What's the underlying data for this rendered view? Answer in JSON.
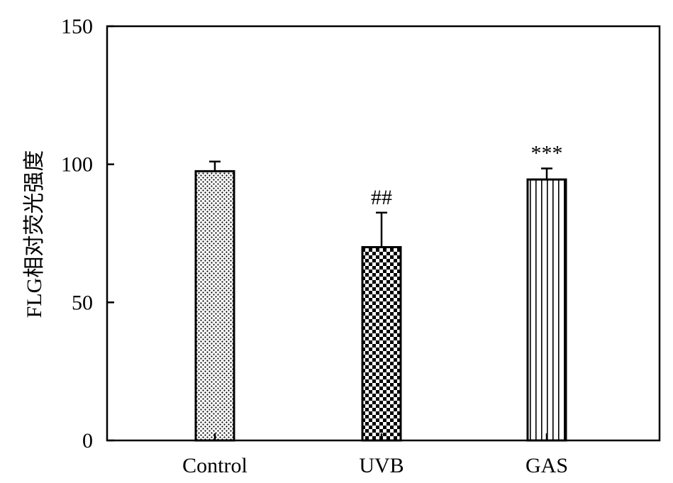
{
  "chart_data": {
    "type": "bar",
    "title": "",
    "ylabel": "FLG相对荧光强度",
    "xlabel": "",
    "ylim": [
      0,
      150
    ],
    "yticks": [
      0,
      50,
      100,
      150
    ],
    "categories": [
      "Control",
      "UVB",
      "GAS"
    ],
    "values": [
      97.5,
      70,
      94.5
    ],
    "errors": [
      3.5,
      12.5,
      4
    ],
    "annotations": [
      "",
      "##",
      "***"
    ],
    "patterns": [
      "dots",
      "checker",
      "vertical-lines"
    ],
    "grid": false,
    "legend": "none"
  }
}
